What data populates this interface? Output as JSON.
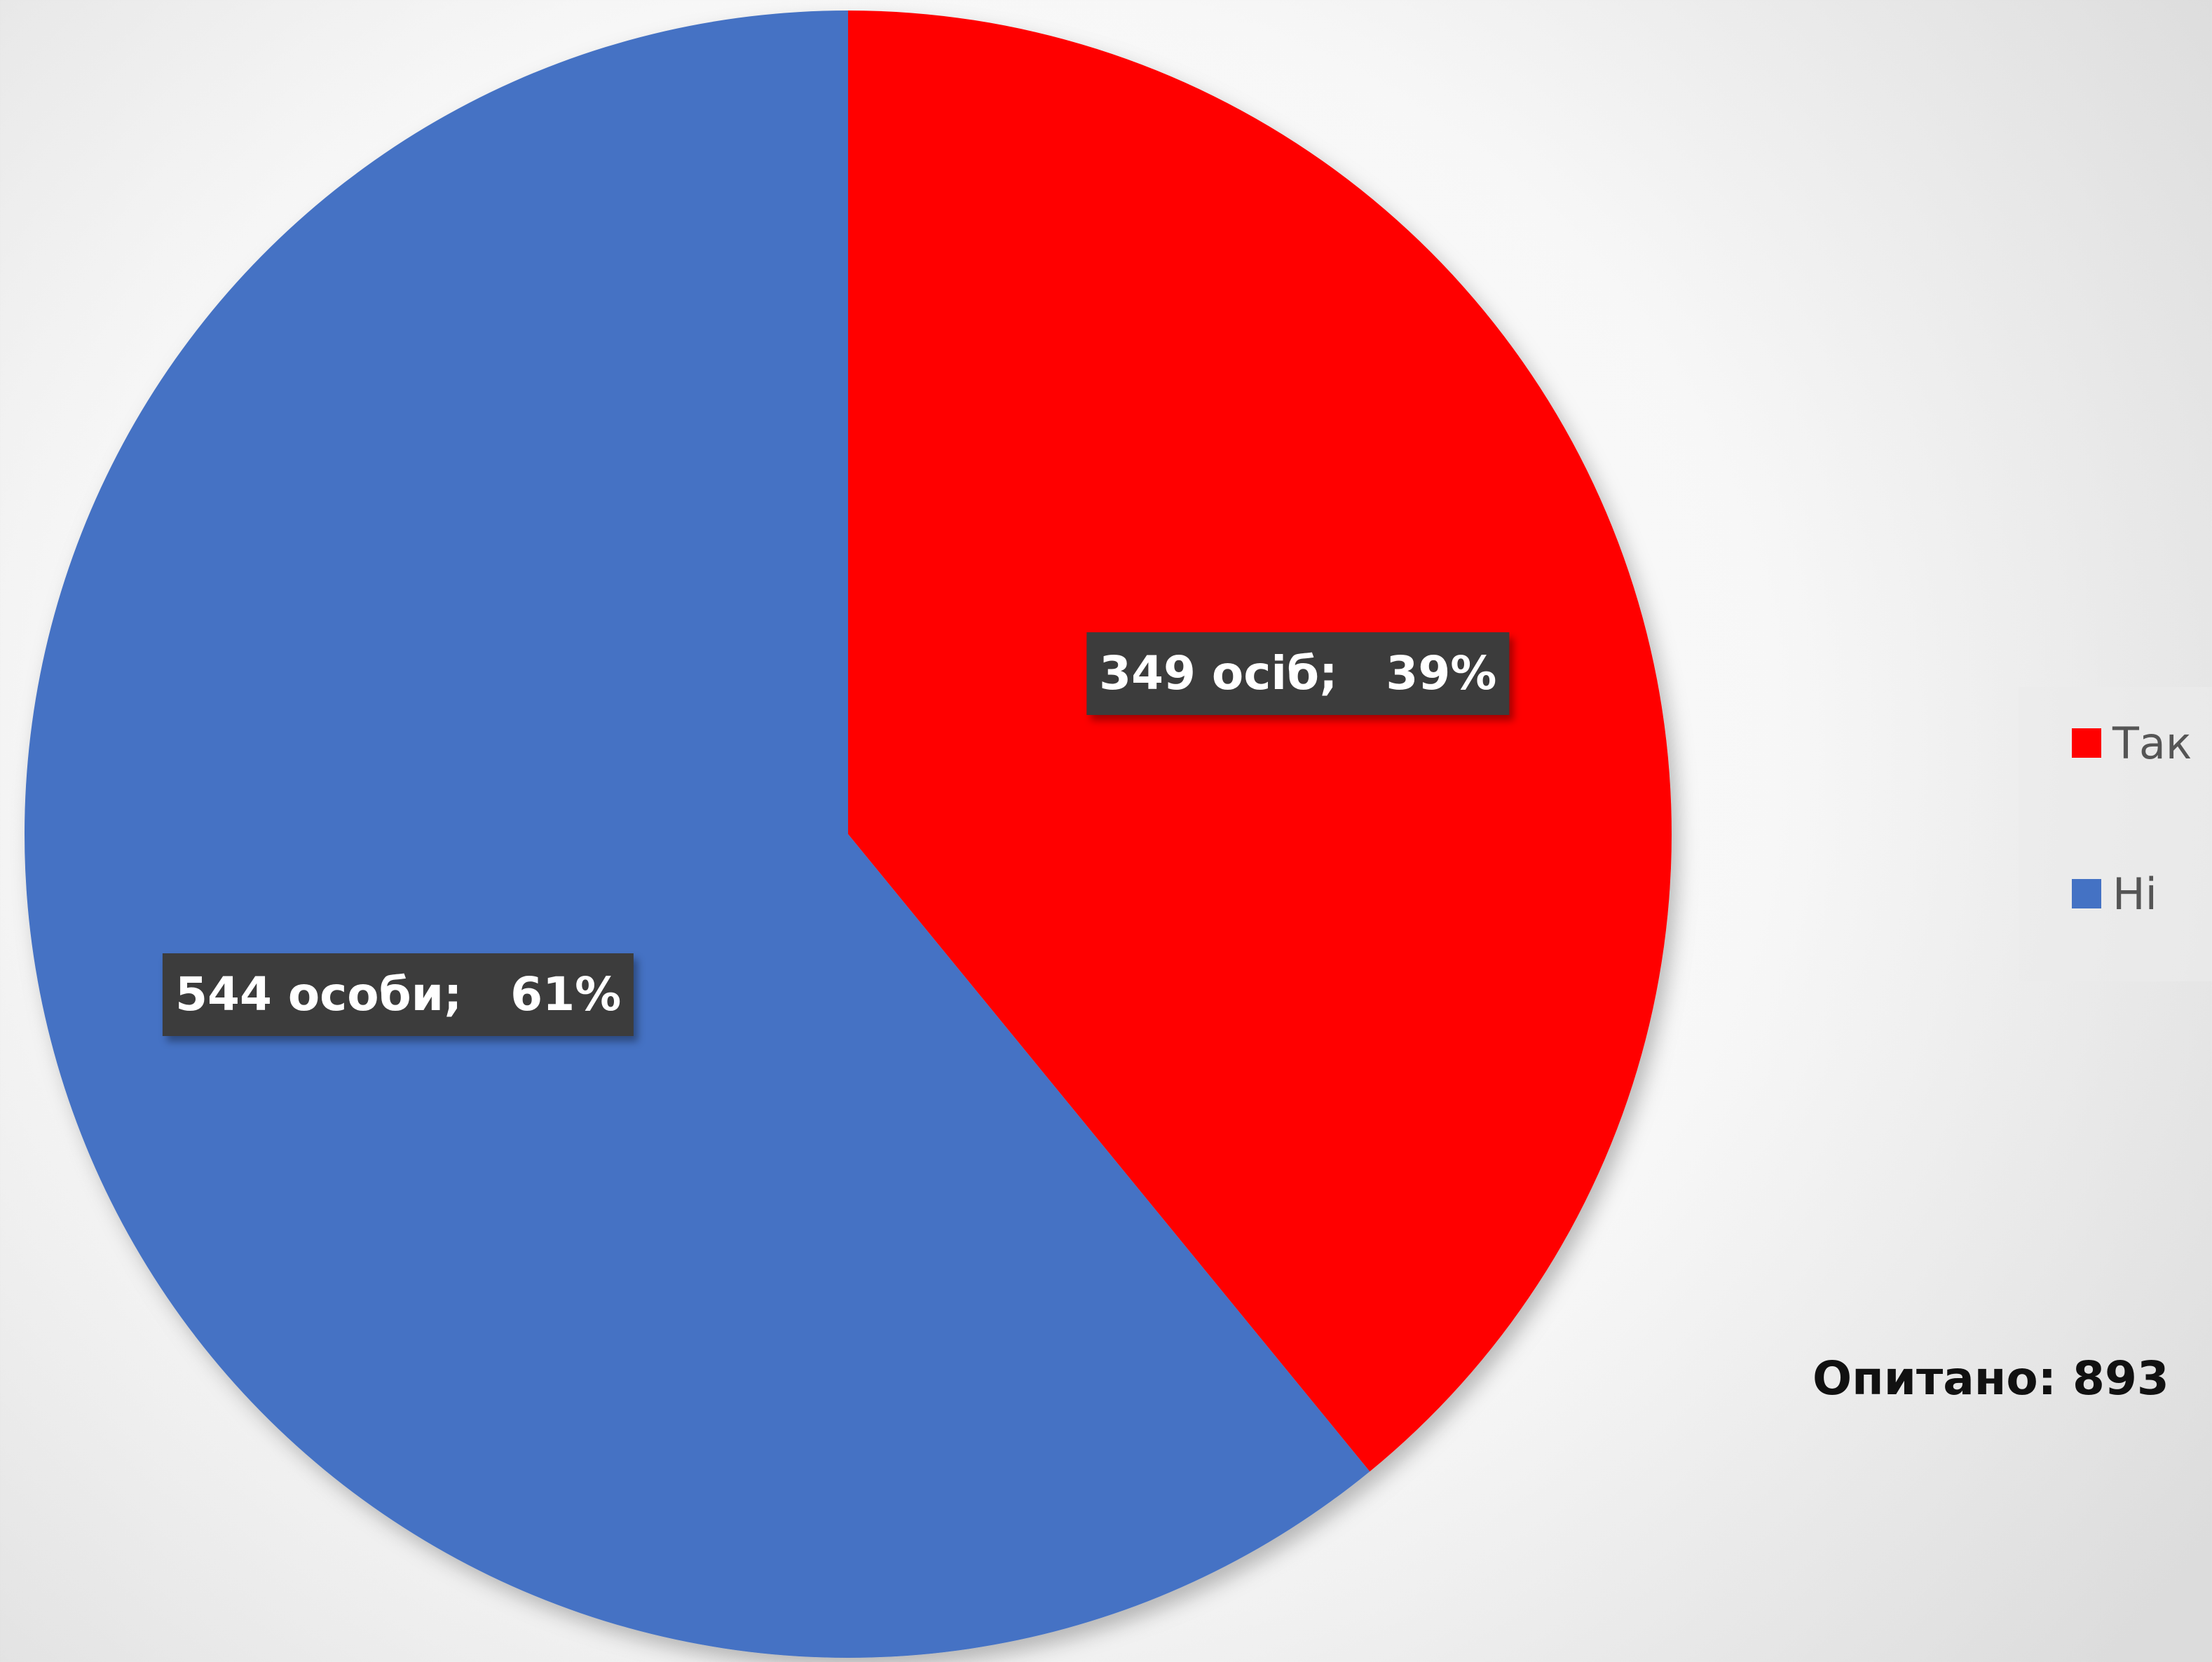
{
  "chart_data": {
    "type": "pie",
    "start_angle_deg": 0,
    "direction": "clockwise",
    "slices": [
      {
        "name": "Так",
        "value": 349,
        "percent": 39,
        "label": "349 осіб;   39%",
        "color": "#ff0000"
      },
      {
        "name": "Ні",
        "value": 544,
        "percent": 61,
        "label": "544 особи;   61%",
        "color": "#4472c4"
      }
    ],
    "legend": {
      "placement": "right",
      "entries": [
        "Так",
        "Ні"
      ]
    },
    "total_label": "Опитано: 893"
  }
}
